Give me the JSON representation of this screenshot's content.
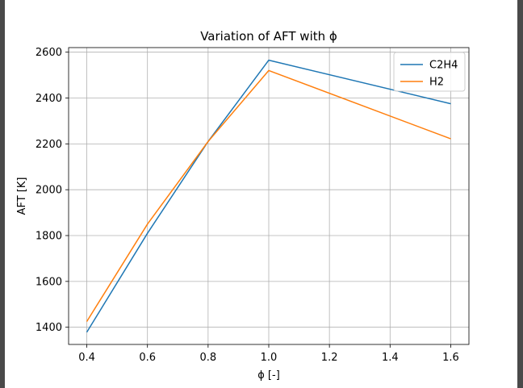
{
  "chart_data": {
    "type": "line",
    "title": "Variation of AFT with ϕ",
    "xlabel": "ϕ [-]",
    "ylabel": "AFT [K]",
    "x": [
      0.4,
      0.6,
      0.8,
      1.0,
      1.6
    ],
    "xlim": [
      0.34,
      1.66
    ],
    "ylim": [
      1325,
      2620
    ],
    "xticks": [
      "0.4",
      "0.6",
      "0.8",
      "1.0",
      "1.2",
      "1.4",
      "1.6"
    ],
    "yticks": [
      "1400",
      "1600",
      "1800",
      "2000",
      "2200",
      "2400",
      "2600"
    ],
    "grid": true,
    "legend_position": "top-right",
    "series": [
      {
        "name": "C2H4",
        "color": "#1f77b4",
        "values": [
          1378,
          1810,
          2210,
          2565,
          2375
        ]
      },
      {
        "name": "H2",
        "color": "#ff7f0e",
        "values": [
          1425,
          1850,
          2210,
          2520,
          2222
        ]
      }
    ]
  }
}
